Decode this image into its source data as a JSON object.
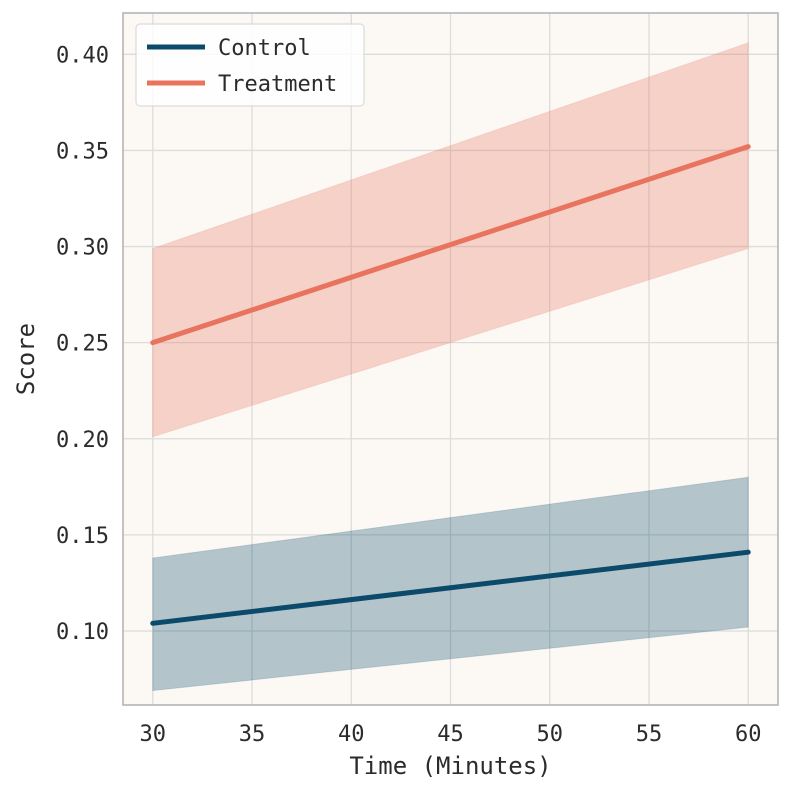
{
  "chart_data": {
    "type": "line",
    "title": "",
    "xlabel": "Time (Minutes)",
    "ylabel": "Score",
    "xlim": [
      28.5,
      61.5
    ],
    "ylim": [
      0.0615,
      0.4215
    ],
    "xticks": [
      30,
      35,
      40,
      45,
      50,
      55,
      60
    ],
    "xtick_labels": [
      "30",
      "35",
      "40",
      "45",
      "50",
      "55",
      "60"
    ],
    "yticks": [
      0.1,
      0.15,
      0.2,
      0.25,
      0.3,
      0.35,
      0.4
    ],
    "ytick_labels": [
      "0.10",
      "0.15",
      "0.20",
      "0.25",
      "0.30",
      "0.35",
      "0.40"
    ],
    "grid": true,
    "legend_position": "top-left",
    "background_color": "#fcf9f5",
    "series": [
      {
        "name": "Control",
        "color": "#0b4a6b",
        "x": [
          30,
          60
        ],
        "y": [
          0.104,
          0.141
        ],
        "band_lower": [
          0.069,
          0.102
        ],
        "band_upper": [
          0.138,
          0.18
        ]
      },
      {
        "name": "Treatment",
        "color": "#e8735f",
        "x": [
          30,
          60
        ],
        "y": [
          0.25,
          0.352
        ],
        "band_lower": [
          0.201,
          0.299
        ],
        "band_upper": [
          0.299,
          0.406
        ]
      }
    ]
  }
}
